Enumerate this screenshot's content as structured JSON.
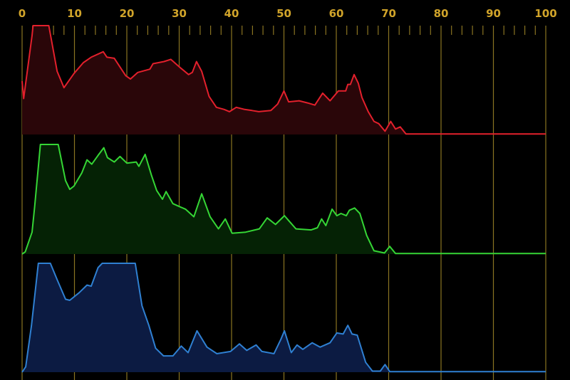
{
  "chart_data": {
    "type": "area",
    "xlim": [
      0,
      100
    ],
    "ylim": [
      0,
      100
    ],
    "grid": true,
    "x_ticks": [
      "0",
      "10",
      "20",
      "30",
      "40",
      "50",
      "60",
      "70",
      "80",
      "90",
      "100"
    ],
    "minor_tick_step": 2,
    "grid_color": "#8a7422",
    "tick_label_color": "#d1a42a",
    "series": [
      {
        "color": "#e3202c",
        "fill": "#2a0609",
        "points": [
          [
            0,
            49
          ],
          [
            0.3,
            33
          ],
          [
            1.9,
            91
          ],
          [
            2.1,
            100
          ],
          [
            5.1,
            100
          ],
          [
            6.7,
            58
          ],
          [
            8,
            43
          ],
          [
            9.9,
            56
          ],
          [
            11.7,
            66
          ],
          [
            13.2,
            71
          ],
          [
            15.5,
            76
          ],
          [
            16.2,
            71
          ],
          [
            17.6,
            70
          ],
          [
            19.8,
            54
          ],
          [
            20.7,
            51
          ],
          [
            22.1,
            57
          ],
          [
            24.4,
            60
          ],
          [
            25,
            65
          ],
          [
            27.1,
            67
          ],
          [
            28.4,
            69
          ],
          [
            30.3,
            61
          ],
          [
            31.8,
            55
          ],
          [
            32.5,
            57
          ],
          [
            33.3,
            67
          ],
          [
            34.3,
            58
          ],
          [
            35.7,
            35
          ],
          [
            37.1,
            25
          ],
          [
            38.6,
            23
          ],
          [
            39.6,
            21
          ],
          [
            40.9,
            25
          ],
          [
            42.5,
            23
          ],
          [
            43.9,
            22
          ],
          [
            45.2,
            21
          ],
          [
            47.5,
            22
          ],
          [
            48.8,
            28
          ],
          [
            50,
            40
          ],
          [
            50.9,
            30
          ],
          [
            52.9,
            31
          ],
          [
            54.5,
            29
          ],
          [
            55.9,
            27
          ],
          [
            57.4,
            38
          ],
          [
            58.8,
            31
          ],
          [
            60.4,
            40
          ],
          [
            61.8,
            40
          ],
          [
            62.2,
            46
          ],
          [
            62.7,
            46
          ],
          [
            63.4,
            55
          ],
          [
            64.2,
            47
          ],
          [
            64.9,
            34
          ],
          [
            66.1,
            21
          ],
          [
            67.2,
            12
          ],
          [
            68.1,
            10
          ],
          [
            69.3,
            3
          ],
          [
            70.4,
            12
          ],
          [
            71.3,
            5
          ],
          [
            72.2,
            7
          ],
          [
            73.3,
            0.5
          ],
          [
            100,
            0.5
          ]
        ]
      },
      {
        "color": "#35d635",
        "fill": "#052205",
        "points": [
          [
            0,
            0
          ],
          [
            0.6,
            2
          ],
          [
            1.9,
            20
          ],
          [
            2.4,
            43
          ],
          [
            3.5,
            100
          ],
          [
            6.9,
            100
          ],
          [
            8.3,
            67
          ],
          [
            9.1,
            59
          ],
          [
            9.9,
            62
          ],
          [
            11.4,
            74
          ],
          [
            12.4,
            86
          ],
          [
            13.3,
            82
          ],
          [
            14.5,
            90
          ],
          [
            15.6,
            97
          ],
          [
            16.3,
            88
          ],
          [
            17.6,
            84
          ],
          [
            18.7,
            89
          ],
          [
            20,
            83
          ],
          [
            21.8,
            84
          ],
          [
            22.3,
            80
          ],
          [
            23.5,
            91
          ],
          [
            24.7,
            72
          ],
          [
            25.7,
            58
          ],
          [
            26.8,
            50
          ],
          [
            27.5,
            57
          ],
          [
            28.8,
            46
          ],
          [
            30.2,
            43
          ],
          [
            31.2,
            41
          ],
          [
            32.8,
            34
          ],
          [
            34.3,
            55
          ],
          [
            35.9,
            34
          ],
          [
            37.5,
            23
          ],
          [
            38.8,
            32
          ],
          [
            40.1,
            19
          ],
          [
            42.7,
            20
          ],
          [
            45.3,
            23
          ],
          [
            46.8,
            33
          ],
          [
            48.4,
            27
          ],
          [
            50.1,
            35
          ],
          [
            51,
            30
          ],
          [
            52.3,
            23
          ],
          [
            55.2,
            22
          ],
          [
            56.4,
            24
          ],
          [
            57.2,
            32
          ],
          [
            58,
            26
          ],
          [
            59.2,
            41
          ],
          [
            60.1,
            35
          ],
          [
            60.9,
            37
          ],
          [
            61.9,
            35
          ],
          [
            62.5,
            40
          ],
          [
            63.5,
            42
          ],
          [
            64.5,
            37
          ],
          [
            65.8,
            17
          ],
          [
            67.2,
            3
          ],
          [
            69.2,
            1
          ],
          [
            70.2,
            7
          ],
          [
            71.3,
            0.5
          ],
          [
            100,
            0.5
          ]
        ]
      },
      {
        "color": "#2f80d2",
        "fill": "#0c1b42",
        "points": [
          [
            0,
            0
          ],
          [
            0.7,
            5
          ],
          [
            1.8,
            43
          ],
          [
            3.1,
            100
          ],
          [
            5.4,
            100
          ],
          [
            6.7,
            85
          ],
          [
            8.3,
            67
          ],
          [
            9.1,
            66
          ],
          [
            10.9,
            73
          ],
          [
            12.4,
            80
          ],
          [
            13.2,
            79
          ],
          [
            14.5,
            96
          ],
          [
            15.3,
            100
          ],
          [
            21.6,
            100
          ],
          [
            22.9,
            61
          ],
          [
            24.2,
            43
          ],
          [
            25.5,
            22
          ],
          [
            27,
            15
          ],
          [
            28.8,
            15
          ],
          [
            30.4,
            24
          ],
          [
            31.7,
            18
          ],
          [
            33.4,
            38
          ],
          [
            35.3,
            23
          ],
          [
            37.2,
            17
          ],
          [
            39.8,
            19
          ],
          [
            41.5,
            26
          ],
          [
            42.9,
            20
          ],
          [
            44.7,
            25
          ],
          [
            45.8,
            19
          ],
          [
            48.1,
            17
          ],
          [
            49.4,
            30
          ],
          [
            50.1,
            38
          ],
          [
            51.4,
            18
          ],
          [
            52.5,
            25
          ],
          [
            53.6,
            21
          ],
          [
            55.4,
            27
          ],
          [
            56.9,
            23
          ],
          [
            58.8,
            27
          ],
          [
            60.1,
            36
          ],
          [
            61.3,
            35
          ],
          [
            62.2,
            43
          ],
          [
            63,
            35
          ],
          [
            64,
            34
          ],
          [
            65.6,
            9
          ],
          [
            66.9,
            1
          ],
          [
            68.4,
            1
          ],
          [
            69.3,
            7
          ],
          [
            70.2,
            0.5
          ],
          [
            100,
            0.5
          ]
        ]
      }
    ]
  }
}
